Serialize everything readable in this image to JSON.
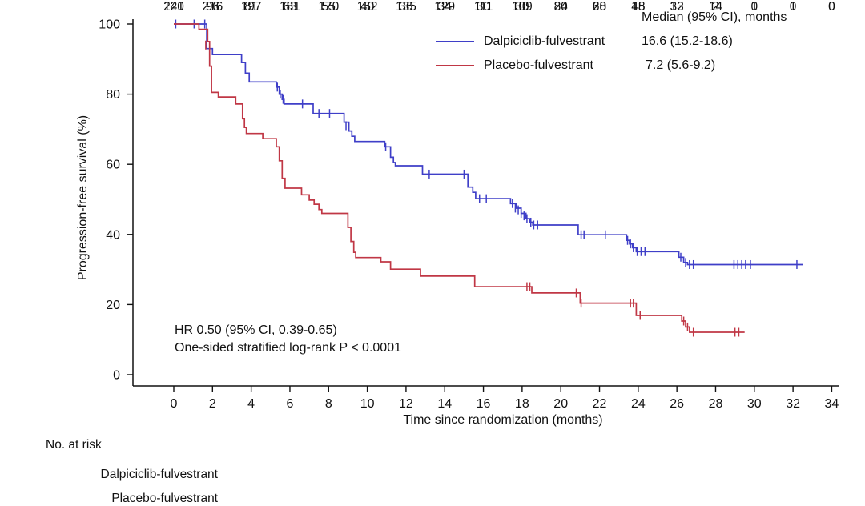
{
  "chart_data": {
    "type": "line",
    "subtype": "kaplan_meier_step_plot",
    "title": "",
    "xlabel": "Time since randomization (months)",
    "ylabel": "Progression-free survival (%)",
    "xlim": [
      0,
      34
    ],
    "ylim": [
      0,
      100
    ],
    "xticks": [
      0,
      2,
      4,
      6,
      8,
      10,
      12,
      14,
      16,
      18,
      20,
      22,
      24,
      26,
      28,
      30,
      32,
      34
    ],
    "yticks": [
      0,
      20,
      40,
      60,
      80,
      100
    ],
    "grid": false,
    "axis_color": "#111111",
    "legend": {
      "position": "top-right",
      "header": "Median (95% CI), months",
      "entries": [
        {
          "name": "Dalpiciclib-fulvestrant",
          "median": "16.6 (15.2-18.6)",
          "color": "#3F3FC8"
        },
        {
          "name": "Placebo-fulvestrant",
          "median": "7.2 (5.6-9.2)",
          "color": "#C03745"
        }
      ]
    },
    "annotation": {
      "lines": [
        "HR 0.50 (95% CI, 0.39-0.65)",
        "One-sided stratified log-rank P < 0.0001"
      ]
    },
    "series": [
      {
        "name": "Dalpiciclib-fulvestrant",
        "color": "#3F3FC8",
        "end_month": 32.5,
        "steps": [
          [
            0,
            100
          ],
          [
            1.7,
            93
          ],
          [
            2.0,
            91.3
          ],
          [
            3.5,
            89
          ],
          [
            3.7,
            86
          ],
          [
            3.9,
            83.5
          ],
          [
            5.3,
            82
          ],
          [
            5.45,
            80
          ],
          [
            5.6,
            78.5
          ],
          [
            5.7,
            77.2
          ],
          [
            7.2,
            74.5
          ],
          [
            8.8,
            72
          ],
          [
            9.05,
            69.5
          ],
          [
            9.2,
            68
          ],
          [
            9.35,
            66.5
          ],
          [
            10.9,
            65
          ],
          [
            11.2,
            62
          ],
          [
            11.35,
            60.5
          ],
          [
            11.45,
            59.6
          ],
          [
            12.85,
            57.2
          ],
          [
            15.2,
            53.5
          ],
          [
            15.45,
            52
          ],
          [
            15.6,
            50.2
          ],
          [
            17.4,
            48.8
          ],
          [
            17.7,
            47.5
          ],
          [
            17.95,
            46
          ],
          [
            18.2,
            44.5
          ],
          [
            18.4,
            43.5
          ],
          [
            18.55,
            42.7
          ],
          [
            20.9,
            39.9
          ],
          [
            23.4,
            38.3
          ],
          [
            23.55,
            37.3
          ],
          [
            23.7,
            36.2
          ],
          [
            23.9,
            35.1
          ],
          [
            26.1,
            33.5
          ],
          [
            26.35,
            32
          ],
          [
            26.55,
            31.4
          ]
        ],
        "censor_marks": [
          [
            0.1,
            100
          ],
          [
            1.05,
            100
          ],
          [
            1.6,
            100
          ],
          [
            5.35,
            82
          ],
          [
            5.5,
            80
          ],
          [
            5.65,
            78.5
          ],
          [
            6.65,
            77.2
          ],
          [
            7.5,
            74.5
          ],
          [
            8.05,
            74.5
          ],
          [
            8.9,
            71
          ],
          [
            10.95,
            65
          ],
          [
            13.2,
            57.2
          ],
          [
            15.0,
            57.2
          ],
          [
            15.8,
            50.2
          ],
          [
            16.15,
            50.2
          ],
          [
            17.5,
            48.8
          ],
          [
            17.65,
            47.5
          ],
          [
            17.8,
            47
          ],
          [
            17.95,
            46
          ],
          [
            18.1,
            45.3
          ],
          [
            18.25,
            44.5
          ],
          [
            18.45,
            43.5
          ],
          [
            18.6,
            42.7
          ],
          [
            18.8,
            42.7
          ],
          [
            21.05,
            39.9
          ],
          [
            21.2,
            39.9
          ],
          [
            22.3,
            39.9
          ],
          [
            23.45,
            38.3
          ],
          [
            23.6,
            37.3
          ],
          [
            23.75,
            36.2
          ],
          [
            23.95,
            35.1
          ],
          [
            24.15,
            35.1
          ],
          [
            24.35,
            35.1
          ],
          [
            26.2,
            33.5
          ],
          [
            26.45,
            32
          ],
          [
            26.65,
            31.4
          ],
          [
            26.85,
            31.4
          ],
          [
            28.95,
            31.4
          ],
          [
            29.15,
            31.4
          ],
          [
            29.35,
            31.4
          ],
          [
            29.55,
            31.4
          ],
          [
            29.8,
            31.4
          ],
          [
            32.2,
            31.4
          ]
        ]
      },
      {
        "name": "Placebo-fulvestrant",
        "color": "#C03745",
        "end_month": 29.5,
        "steps": [
          [
            0,
            100
          ],
          [
            1.3,
            98.5
          ],
          [
            1.75,
            95
          ],
          [
            1.85,
            88
          ],
          [
            1.95,
            80.5
          ],
          [
            2.3,
            79.2
          ],
          [
            3.2,
            77.2
          ],
          [
            3.55,
            73
          ],
          [
            3.65,
            70.5
          ],
          [
            3.75,
            68.8
          ],
          [
            4.6,
            67.3
          ],
          [
            5.3,
            65
          ],
          [
            5.45,
            61
          ],
          [
            5.6,
            56
          ],
          [
            5.75,
            53.2
          ],
          [
            6.6,
            51.3
          ],
          [
            7.0,
            49.8
          ],
          [
            7.25,
            48.6
          ],
          [
            7.5,
            47.1
          ],
          [
            7.65,
            46
          ],
          [
            9.0,
            42
          ],
          [
            9.15,
            38
          ],
          [
            9.3,
            34.9
          ],
          [
            9.4,
            33.4
          ],
          [
            10.7,
            32.2
          ],
          [
            11.2,
            30.1
          ],
          [
            12.75,
            28.1
          ],
          [
            15.55,
            25.1
          ],
          [
            18.5,
            23.3
          ],
          [
            21.0,
            20.4
          ],
          [
            23.9,
            16.9
          ],
          [
            26.25,
            15.3
          ],
          [
            26.45,
            13.6
          ],
          [
            26.65,
            12.1
          ]
        ],
        "censor_marks": [
          [
            1.65,
            94
          ],
          [
            18.25,
            25.1
          ],
          [
            18.4,
            25.1
          ],
          [
            20.8,
            23.3
          ],
          [
            21.05,
            20.4
          ],
          [
            23.6,
            20.4
          ],
          [
            23.75,
            20.4
          ],
          [
            24.1,
            16.9
          ],
          [
            26.35,
            15.3
          ],
          [
            26.55,
            13.6
          ],
          [
            26.85,
            12.1
          ],
          [
            29.0,
            12.1
          ],
          [
            29.2,
            12.1
          ]
        ]
      }
    ],
    "risk_table": {
      "title": "No. at risk",
      "times": [
        0,
        2,
        4,
        6,
        8,
        10,
        12,
        14,
        16,
        18,
        20,
        22,
        24,
        26,
        28,
        30,
        32,
        34
      ],
      "rows": [
        {
          "name": "Dalpiciclib-fulvestrant",
          "values": [
            241,
            216,
            197,
            181,
            170,
            152,
            135,
            129,
            111,
            109,
            80,
            68,
            45,
            33,
            14,
            1,
            1,
            0
          ]
        },
        {
          "name": "Placebo-fulvestrant",
          "values": [
            120,
            96,
            81,
            63,
            55,
            40,
            36,
            34,
            30,
            30,
            24,
            20,
            18,
            12,
            2,
            0,
            0,
            0
          ]
        }
      ]
    }
  }
}
